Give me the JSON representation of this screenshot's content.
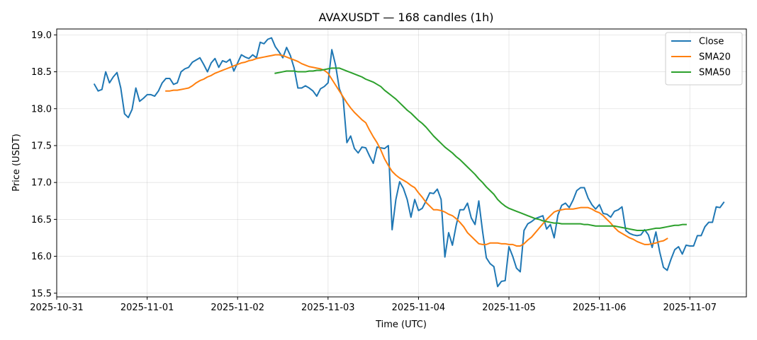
{
  "chart_data": {
    "type": "line",
    "title": "AVAXUSDT — 168 candles (1h)",
    "xlabel": "Time (UTC)",
    "ylabel": "Price (USDT)",
    "x_ticks": [
      "2025-10-31",
      "2025-11-01",
      "2025-11-02",
      "2025-11-03",
      "2025-11-04",
      "2025-11-05",
      "2025-11-06",
      "2025-11-07"
    ],
    "y_ticks": [
      "15.5",
      "16.0",
      "16.5",
      "17.0",
      "17.5",
      "18.0",
      "18.5",
      "19.0"
    ],
    "xlim": [
      "2025-10-31 00:00",
      "2025-11-07 15:00"
    ],
    "ylim": [
      15.45,
      19.08
    ],
    "grid": true,
    "legend_position": "top-right",
    "colors": {
      "Close": "#1f77b4",
      "SMA20": "#ff7f0e",
      "SMA50": "#2ca02c"
    },
    "series": [
      {
        "name": "Close",
        "start": "2025-10-31 10:00",
        "interval_hours": 1,
        "values": [
          18.33,
          18.24,
          18.26,
          18.5,
          18.35,
          18.43,
          18.49,
          18.28,
          17.93,
          17.88,
          17.99,
          18.28,
          18.1,
          18.14,
          18.19,
          18.19,
          18.17,
          18.24,
          18.35,
          18.41,
          18.41,
          18.33,
          18.35,
          18.5,
          18.54,
          18.56,
          18.63,
          18.66,
          18.69,
          18.6,
          18.5,
          18.62,
          18.68,
          18.56,
          18.65,
          18.63,
          18.67,
          18.51,
          18.62,
          18.73,
          18.7,
          18.68,
          18.73,
          18.69,
          18.9,
          18.88,
          18.94,
          18.96,
          18.84,
          18.77,
          18.69,
          18.83,
          18.72,
          18.55,
          18.28,
          18.28,
          18.31,
          18.28,
          18.24,
          18.17,
          18.27,
          18.3,
          18.35,
          18.8,
          18.59,
          18.27,
          18.14,
          17.54,
          17.63,
          17.46,
          17.4,
          17.48,
          17.47,
          17.36,
          17.26,
          17.48,
          17.47,
          17.46,
          17.5,
          16.36,
          16.77,
          17.01,
          16.92,
          16.77,
          16.53,
          16.77,
          16.62,
          16.65,
          16.75,
          16.86,
          16.85,
          16.91,
          16.77,
          15.99,
          16.32,
          16.15,
          16.42,
          16.63,
          16.63,
          16.72,
          16.52,
          16.43,
          16.75,
          16.34,
          15.98,
          15.9,
          15.86,
          15.59,
          15.66,
          15.67,
          16.13,
          16.0,
          15.84,
          15.79,
          16.35,
          16.44,
          16.47,
          16.51,
          16.53,
          16.55,
          16.37,
          16.43,
          16.25,
          16.56,
          16.69,
          16.72,
          16.66,
          16.76,
          16.89,
          16.93,
          16.93,
          16.79,
          16.7,
          16.64,
          16.7,
          16.58,
          16.57,
          16.53,
          16.61,
          16.63,
          16.67,
          16.35,
          16.31,
          16.29,
          16.28,
          16.29,
          16.36,
          16.29,
          16.12,
          16.33,
          16.06,
          15.85,
          15.81,
          15.96,
          16.09,
          16.13,
          16.03,
          16.15,
          16.14,
          16.14,
          16.28,
          16.28,
          16.4,
          16.46,
          16.46,
          16.67,
          16.66,
          16.73
        ]
      },
      {
        "name": "SMA20",
        "start": "2025-11-01 05:00",
        "interval_hours": 1,
        "values": [
          18.24,
          18.24,
          18.25,
          18.25,
          18.26,
          18.27,
          18.28,
          18.31,
          18.35,
          18.38,
          18.4,
          18.43,
          18.45,
          18.48,
          18.5,
          18.52,
          18.54,
          18.56,
          18.58,
          18.6,
          18.62,
          18.63,
          18.65,
          18.66,
          18.68,
          18.69,
          18.7,
          18.71,
          18.72,
          18.73,
          18.73,
          18.72,
          18.7,
          18.68,
          18.66,
          18.64,
          18.61,
          18.59,
          18.57,
          18.56,
          18.55,
          18.54,
          18.52,
          18.48,
          18.4,
          18.32,
          18.24,
          18.16,
          18.08,
          18.01,
          17.95,
          17.9,
          17.85,
          17.81,
          17.71,
          17.62,
          17.54,
          17.44,
          17.32,
          17.23,
          17.15,
          17.1,
          17.06,
          17.03,
          17.0,
          16.96,
          16.93,
          16.86,
          16.8,
          16.73,
          16.68,
          16.63,
          16.63,
          16.62,
          16.6,
          16.57,
          16.55,
          16.51,
          16.46,
          16.4,
          16.32,
          16.27,
          16.22,
          16.17,
          16.16,
          16.16,
          16.18,
          16.18,
          16.18,
          16.17,
          16.17,
          16.16,
          16.16,
          16.14,
          16.14,
          16.17,
          16.22,
          16.26,
          16.32,
          16.38,
          16.44,
          16.5,
          16.55,
          16.6,
          16.62,
          16.63,
          16.64,
          16.64,
          16.64,
          16.65,
          16.66,
          16.66,
          16.66,
          16.64,
          16.61,
          16.59,
          16.55,
          16.5,
          16.45,
          16.39,
          16.34,
          16.31,
          16.28,
          16.25,
          16.23,
          16.2,
          16.18,
          16.16,
          16.16,
          16.17,
          16.18,
          16.2,
          16.21,
          16.24
        ]
      },
      {
        "name": "SMA50",
        "start": "2025-11-02 10:00",
        "interval_hours": 1,
        "values": [
          18.48,
          18.49,
          18.5,
          18.51,
          18.51,
          18.51,
          18.5,
          18.5,
          18.5,
          18.51,
          18.51,
          18.52,
          18.52,
          18.53,
          18.54,
          18.55,
          18.55,
          18.55,
          18.53,
          18.51,
          18.49,
          18.47,
          18.45,
          18.43,
          18.4,
          18.38,
          18.36,
          18.33,
          18.3,
          18.25,
          18.21,
          18.17,
          18.13,
          18.08,
          18.03,
          17.98,
          17.94,
          17.89,
          17.84,
          17.8,
          17.75,
          17.69,
          17.63,
          17.58,
          17.53,
          17.48,
          17.44,
          17.4,
          17.35,
          17.31,
          17.26,
          17.21,
          17.16,
          17.11,
          17.05,
          17.0,
          16.94,
          16.89,
          16.84,
          16.77,
          16.72,
          16.68,
          16.65,
          16.63,
          16.61,
          16.59,
          16.57,
          16.55,
          16.53,
          16.51,
          16.5,
          16.48,
          16.47,
          16.46,
          16.45,
          16.45,
          16.44,
          16.44,
          16.44,
          16.44,
          16.44,
          16.44,
          16.43,
          16.43,
          16.42,
          16.41,
          16.41,
          16.41,
          16.41,
          16.41,
          16.41,
          16.4,
          16.39,
          16.38,
          16.37,
          16.36,
          16.35,
          16.35,
          16.35,
          16.36,
          16.37,
          16.38,
          16.38,
          16.39,
          16.4,
          16.41,
          16.42,
          16.42,
          16.43,
          16.43
        ]
      }
    ]
  }
}
